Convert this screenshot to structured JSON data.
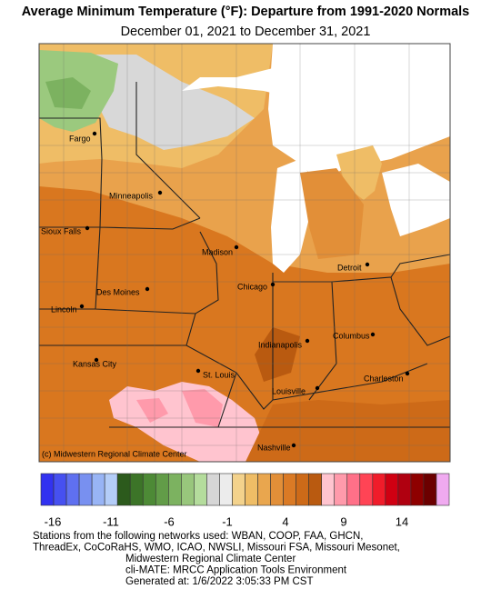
{
  "header": {
    "title": "Average Minimum Temperature (°F): Departure from 1991-2020 Normals",
    "subtitle": "December 01, 2021 to December 31, 2021"
  },
  "map": {
    "credit": "(c) Midwestern Regional Climate Center",
    "cities": [
      {
        "label": "Fargo"
      },
      {
        "label": "Minneapolis"
      },
      {
        "label": "Sioux Falls"
      },
      {
        "label": "Madison"
      },
      {
        "label": "Detroit"
      },
      {
        "label": "Des Moines"
      },
      {
        "label": "Chicago"
      },
      {
        "label": "Lincoln"
      },
      {
        "label": "Columbus"
      },
      {
        "label": "Indianapolis"
      },
      {
        "label": "Kansas City"
      },
      {
        "label": "Charleston"
      },
      {
        "label": "St. Louis"
      },
      {
        "label": "Louisville"
      },
      {
        "label": "Nashville"
      }
    ]
  },
  "legend": {
    "colors": [
      "#3232f0",
      "#4650f0",
      "#5f70f0",
      "#7890f0",
      "#98b4f5",
      "#b4cdf8",
      "#2c5a1c",
      "#3c7428",
      "#4d8a36",
      "#629c48",
      "#7cb260",
      "#98c67c",
      "#b4dc9c",
      "#d6d6d6",
      "#ececec",
      "#f3d28c",
      "#efbd66",
      "#e9a64e",
      "#e28f38",
      "#da7a25",
      "#cd6a18",
      "#b95a10",
      "#ffc4cf",
      "#ff9aab",
      "#ff7088",
      "#ff4455",
      "#f01c2a",
      "#d00012",
      "#b00010",
      "#8e0000",
      "#6c0000",
      "#f0aaf0"
    ],
    "ticks": [
      -16,
      -11,
      -6,
      -1,
      4,
      9,
      14
    ]
  },
  "footer": {
    "lines": [
      "Stations from the following networks used: WBAN, COOP, FAA, GHCN,",
      "ThreadEx, CoCoRaHS, WMO, ICAO, NWSLI, Missouri FSA, Missouri Mesonet,",
      "Midwestern Regional Climate Center",
      "cli-MATE: MRCC Application Tools Environment",
      "Generated at: 1/6/2022 3:05:33 PM CST"
    ]
  }
}
